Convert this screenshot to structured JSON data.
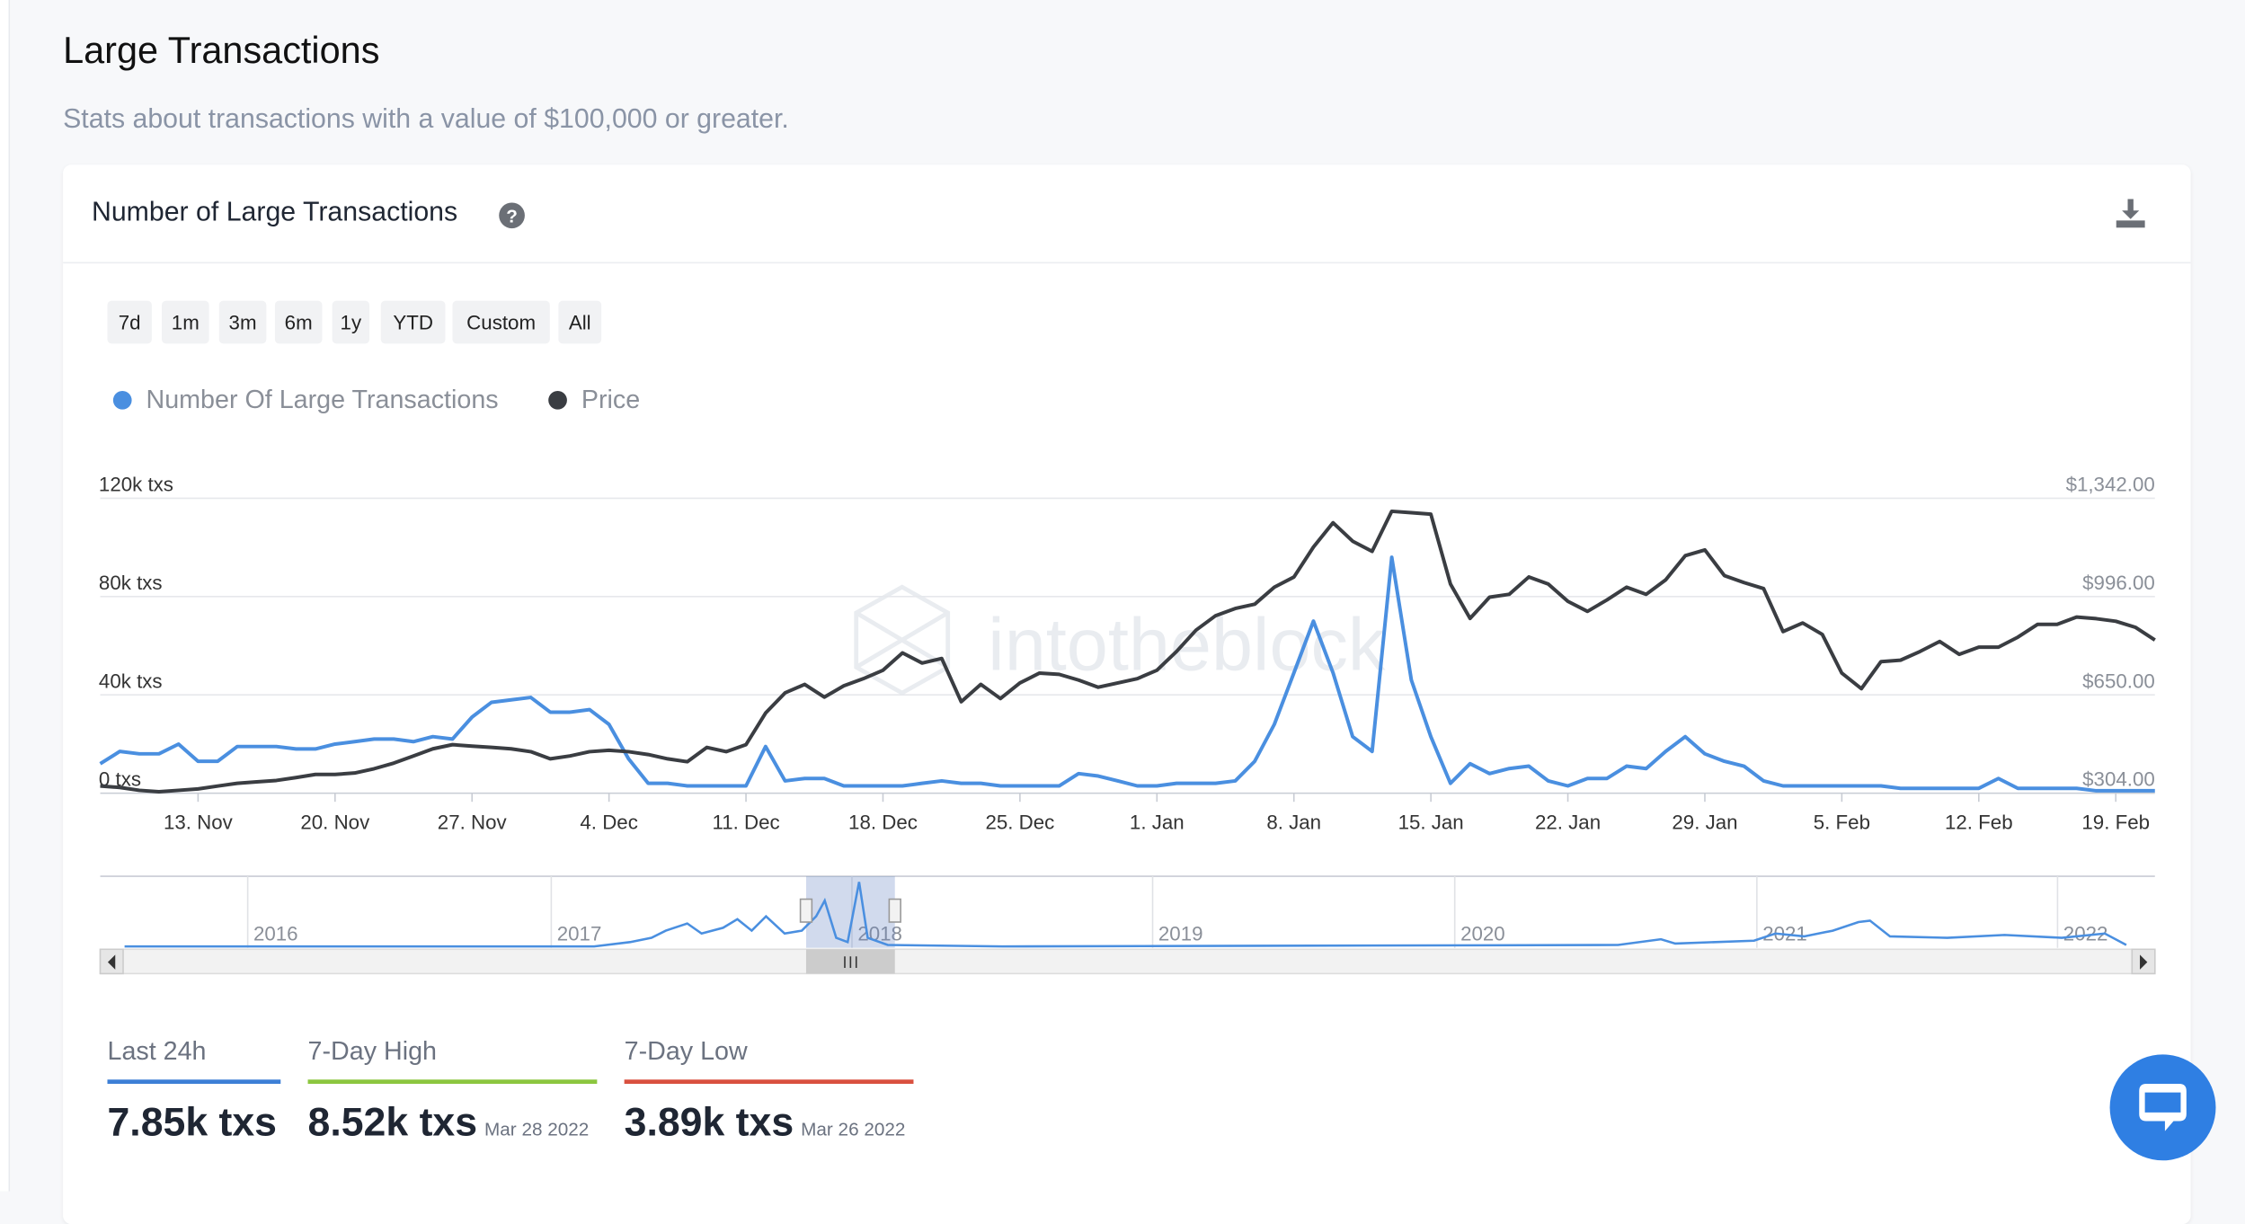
{
  "header": {
    "title": "Large Transactions",
    "subtitle": "Stats about transactions with a value of $100,000 or greater."
  },
  "card": {
    "title": "Number of Large Transactions",
    "ranges": [
      "7d",
      "1m",
      "3m",
      "6m",
      "1y",
      "YTD",
      "Custom",
      "All"
    ]
  },
  "chart_data": {
    "type": "line",
    "categories": [
      null,
      null,
      null,
      null,
      null,
      "13. Nov",
      null,
      null,
      null,
      null,
      null,
      null,
      "20. Nov",
      null,
      null,
      null,
      null,
      null,
      null,
      "27. Nov",
      null,
      null,
      null,
      null,
      null,
      null,
      "4. Dec",
      null,
      null,
      null,
      null,
      null,
      null,
      "11. Dec",
      null,
      null,
      null,
      null,
      null,
      null,
      "18. Dec",
      null,
      null,
      null,
      null,
      null,
      null,
      "25. Dec",
      null,
      null,
      null,
      null,
      null,
      null,
      "1. Jan",
      null,
      null,
      null,
      null,
      null,
      null,
      "8. Jan",
      null,
      null,
      null,
      null,
      null,
      null,
      "15. Jan",
      null,
      null,
      null,
      null,
      null,
      null,
      "22. Jan",
      null,
      null,
      null,
      null,
      null,
      null,
      "29. Jan",
      null,
      null,
      null,
      null,
      null,
      null,
      "5. Feb",
      null,
      null,
      null,
      null,
      null,
      null,
      "12. Feb",
      null,
      null,
      null,
      null,
      null,
      null,
      "19. Feb",
      null,
      null
    ],
    "series": [
      {
        "name": "Number Of Large Transactions",
        "color": "#4a8fe0",
        "axis": "y",
        "values": [
          12,
          17,
          16,
          16,
          20,
          13,
          13,
          19,
          19,
          19,
          18,
          18,
          20,
          21,
          22,
          22,
          21,
          23,
          22,
          31,
          37,
          38,
          39,
          33,
          33,
          34,
          28,
          14,
          4,
          4,
          3,
          3,
          3,
          3,
          19,
          5,
          6,
          6,
          3,
          3,
          3,
          3,
          4,
          5,
          4,
          4,
          3,
          3,
          3,
          3,
          8,
          7,
          5,
          3,
          3,
          4,
          4,
          4,
          5,
          13,
          28,
          49,
          70,
          49,
          23,
          17,
          96,
          46,
          23,
          4,
          12,
          8,
          10,
          11,
          5,
          3,
          6,
          6,
          11,
          10,
          17,
          23,
          16,
          13,
          11,
          5,
          3,
          3,
          3,
          3,
          3,
          3,
          2,
          2,
          2,
          2,
          2,
          6,
          2,
          2,
          2,
          2,
          1,
          1,
          1,
          1
        ]
      },
      {
        "name": "Price",
        "color": "#3a3d42",
        "axis": "y2",
        "values": [
          329,
          324,
          314,
          309,
          314,
          319,
          329,
          339,
          344,
          349,
          359,
          370,
          370,
          375,
          390,
          410,
          435,
          460,
          475,
          470,
          465,
          460,
          450,
          425,
          435,
          450,
          455,
          450,
          440,
          425,
          415,
          465,
          450,
          475,
          586,
          657,
          687,
          642,
          682,
          707,
          737,
          798,
          762,
          778,
          626,
          687,
          637,
          692,
          727,
          722,
          702,
          677,
          692,
          707,
          737,
          803,
          878,
          929,
          954,
          969,
          1029,
          1065,
          1170,
          1256,
          1191,
          1155,
          1296,
          1291,
          1286,
          1040,
          919,
          994,
          1004,
          1065,
          1040,
          979,
          944,
          984,
          1029,
          1004,
          1055,
          1140,
          1160,
          1070,
          1045,
          1024,
          873,
          903,
          863,
          727,
          672,
          767,
          772,
          803,
          838,
          793,
          818,
          818,
          853,
          898,
          898,
          924,
          918,
          909,
          888,
          843
        ]
      }
    ],
    "ylim": [
      0,
      120
    ],
    "yticks": [
      {
        "value": 0,
        "label": "0 txs"
      },
      {
        "value": 40,
        "label": "40k txs"
      },
      {
        "value": 80,
        "label": "80k txs"
      },
      {
        "value": 120,
        "label": "120k txs"
      }
    ],
    "y2lim": [
      304,
      1342
    ],
    "y2ticks": [
      {
        "value": 304,
        "label": "$304.00"
      },
      {
        "value": 650,
        "label": "$650.00"
      },
      {
        "value": 996,
        "label": "$996.00"
      },
      {
        "value": 1342,
        "label": "$1,342.00"
      }
    ],
    "grid": true,
    "watermark": "intotheblock",
    "navigator": {
      "labels": [
        "2016",
        "2017",
        "2018",
        "2019",
        "2020",
        "2021",
        "2022"
      ]
    }
  },
  "stats": [
    {
      "label": "Last 24h",
      "value": "7.85k txs",
      "color": "#3d7fd6"
    },
    {
      "label": "7-Day High",
      "value": "8.52k txs",
      "date": "Mar 28 2022",
      "color": "#8cc63f"
    },
    {
      "label": "7-Day Low",
      "value": "3.89k txs",
      "date": "Mar 26 2022",
      "color": "#d9503f"
    }
  ]
}
